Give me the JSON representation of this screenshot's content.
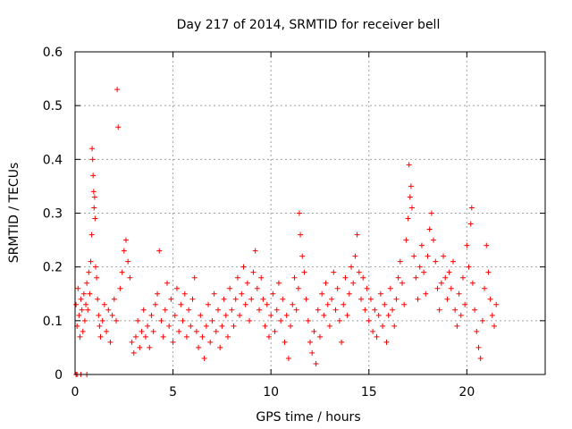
{
  "chart_data": {
    "type": "scatter",
    "title": "Day 217 of 2014, SRMTID for receiver bell",
    "xlabel": "GPS time / hours",
    "ylabel": "SRMTID / TECUs",
    "xlim": [
      0,
      24
    ],
    "ylim": [
      0,
      0.6
    ],
    "xticks": [
      0,
      5,
      10,
      15,
      20
    ],
    "yticks": [
      0,
      0.1,
      0.2,
      0.3,
      0.4,
      0.5,
      0.6
    ],
    "xtick_labels": [
      "0",
      "5",
      "10",
      "15",
      "20"
    ],
    "ytick_labels": [
      "0",
      "0.1",
      "0.2",
      "0.3",
      "0.4",
      "0.5",
      "0.6"
    ],
    "grid": true,
    "marker": "+",
    "series_color": "#ff0000",
    "series": [
      {
        "name": "SRMTID",
        "points": [
          [
            0.05,
            0.0
          ],
          [
            0.1,
            0.0
          ],
          [
            0.3,
            0.0
          ],
          [
            0.6,
            0.0
          ],
          [
            0.05,
            0.13
          ],
          [
            0.1,
            0.09
          ],
          [
            0.15,
            0.16
          ],
          [
            0.2,
            0.11
          ],
          [
            0.25,
            0.07
          ],
          [
            0.3,
            0.14
          ],
          [
            0.35,
            0.12
          ],
          [
            0.4,
            0.08
          ],
          [
            0.45,
            0.15
          ],
          [
            0.5,
            0.1
          ],
          [
            0.55,
            0.13
          ],
          [
            0.6,
            0.17
          ],
          [
            0.65,
            0.12
          ],
          [
            0.7,
            0.19
          ],
          [
            0.75,
            0.15
          ],
          [
            0.8,
            0.21
          ],
          [
            0.85,
            0.26
          ],
          [
            0.87,
            0.42
          ],
          [
            0.9,
            0.4
          ],
          [
            0.92,
            0.37
          ],
          [
            0.95,
            0.34
          ],
          [
            0.97,
            0.31
          ],
          [
            1.0,
            0.33
          ],
          [
            1.02,
            0.29
          ],
          [
            1.05,
            0.2
          ],
          [
            1.1,
            0.18
          ],
          [
            1.15,
            0.14
          ],
          [
            1.2,
            0.11
          ],
          [
            1.25,
            0.09
          ],
          [
            1.3,
            0.07
          ],
          [
            1.4,
            0.1
          ],
          [
            1.5,
            0.13
          ],
          [
            1.6,
            0.08
          ],
          [
            1.7,
            0.12
          ],
          [
            1.8,
            0.06
          ],
          [
            1.9,
            0.11
          ],
          [
            2.0,
            0.14
          ],
          [
            2.1,
            0.1
          ],
          [
            2.15,
            0.53
          ],
          [
            2.2,
            0.46
          ],
          [
            2.3,
            0.16
          ],
          [
            2.4,
            0.19
          ],
          [
            2.5,
            0.23
          ],
          [
            2.6,
            0.25
          ],
          [
            2.7,
            0.21
          ],
          [
            2.8,
            0.18
          ],
          [
            2.9,
            0.06
          ],
          [
            3.0,
            0.04
          ],
          [
            3.1,
            0.07
          ],
          [
            3.2,
            0.1
          ],
          [
            3.3,
            0.05
          ],
          [
            3.4,
            0.08
          ],
          [
            3.5,
            0.12
          ],
          [
            3.6,
            0.07
          ],
          [
            3.7,
            0.09
          ],
          [
            3.8,
            0.05
          ],
          [
            3.9,
            0.11
          ],
          [
            4.0,
            0.08
          ],
          [
            4.1,
            0.13
          ],
          [
            4.2,
            0.15
          ],
          [
            4.3,
            0.23
          ],
          [
            4.4,
            0.1
          ],
          [
            4.5,
            0.07
          ],
          [
            4.6,
            0.12
          ],
          [
            4.7,
            0.17
          ],
          [
            4.8,
            0.09
          ],
          [
            4.9,
            0.14
          ],
          [
            5.0,
            0.06
          ],
          [
            5.1,
            0.11
          ],
          [
            5.2,
            0.16
          ],
          [
            5.3,
            0.08
          ],
          [
            5.4,
            0.13
          ],
          [
            5.5,
            0.1
          ],
          [
            5.6,
            0.15
          ],
          [
            5.7,
            0.07
          ],
          [
            5.8,
            0.12
          ],
          [
            5.9,
            0.09
          ],
          [
            6.0,
            0.14
          ],
          [
            6.1,
            0.18
          ],
          [
            6.2,
            0.08
          ],
          [
            6.3,
            0.05
          ],
          [
            6.4,
            0.11
          ],
          [
            6.5,
            0.07
          ],
          [
            6.6,
            0.03
          ],
          [
            6.7,
            0.09
          ],
          [
            6.8,
            0.13
          ],
          [
            6.9,
            0.06
          ],
          [
            7.0,
            0.1
          ],
          [
            7.1,
            0.15
          ],
          [
            7.2,
            0.08
          ],
          [
            7.3,
            0.12
          ],
          [
            7.4,
            0.05
          ],
          [
            7.5,
            0.09
          ],
          [
            7.6,
            0.14
          ],
          [
            7.7,
            0.11
          ],
          [
            7.8,
            0.07
          ],
          [
            7.9,
            0.16
          ],
          [
            8.0,
            0.12
          ],
          [
            8.1,
            0.09
          ],
          [
            8.2,
            0.14
          ],
          [
            8.3,
            0.18
          ],
          [
            8.4,
            0.11
          ],
          [
            8.5,
            0.15
          ],
          [
            8.6,
            0.2
          ],
          [
            8.7,
            0.13
          ],
          [
            8.8,
            0.17
          ],
          [
            8.9,
            0.1
          ],
          [
            9.0,
            0.14
          ],
          [
            9.1,
            0.19
          ],
          [
            9.2,
            0.23
          ],
          [
            9.3,
            0.16
          ],
          [
            9.4,
            0.12
          ],
          [
            9.5,
            0.18
          ],
          [
            9.6,
            0.14
          ],
          [
            9.7,
            0.09
          ],
          [
            9.8,
            0.13
          ],
          [
            9.9,
            0.07
          ],
          [
            10.0,
            0.11
          ],
          [
            10.1,
            0.15
          ],
          [
            10.2,
            0.08
          ],
          [
            10.3,
            0.12
          ],
          [
            10.4,
            0.17
          ],
          [
            10.5,
            0.1
          ],
          [
            10.6,
            0.14
          ],
          [
            10.7,
            0.06
          ],
          [
            10.8,
            0.11
          ],
          [
            10.9,
            0.03
          ],
          [
            11.0,
            0.09
          ],
          [
            11.1,
            0.13
          ],
          [
            11.2,
            0.18
          ],
          [
            11.3,
            0.12
          ],
          [
            11.4,
            0.16
          ],
          [
            11.45,
            0.3
          ],
          [
            11.5,
            0.26
          ],
          [
            11.6,
            0.22
          ],
          [
            11.7,
            0.19
          ],
          [
            11.8,
            0.14
          ],
          [
            11.9,
            0.1
          ],
          [
            12.0,
            0.06
          ],
          [
            12.1,
            0.04
          ],
          [
            12.2,
            0.08
          ],
          [
            12.3,
            0.02
          ],
          [
            12.4,
            0.12
          ],
          [
            12.5,
            0.07
          ],
          [
            12.6,
            0.15
          ],
          [
            12.7,
            0.11
          ],
          [
            12.8,
            0.17
          ],
          [
            12.9,
            0.13
          ],
          [
            13.0,
            0.09
          ],
          [
            13.1,
            0.14
          ],
          [
            13.2,
            0.19
          ],
          [
            13.3,
            0.12
          ],
          [
            13.4,
            0.16
          ],
          [
            13.5,
            0.1
          ],
          [
            13.6,
            0.06
          ],
          [
            13.7,
            0.13
          ],
          [
            13.8,
            0.18
          ],
          [
            13.9,
            0.11
          ],
          [
            14.0,
            0.15
          ],
          [
            14.1,
            0.2
          ],
          [
            14.2,
            0.17
          ],
          [
            14.3,
            0.22
          ],
          [
            14.4,
            0.26
          ],
          [
            14.5,
            0.19
          ],
          [
            14.6,
            0.14
          ],
          [
            14.7,
            0.18
          ],
          [
            14.8,
            0.12
          ],
          [
            14.9,
            0.16
          ],
          [
            15.0,
            0.1
          ],
          [
            15.1,
            0.14
          ],
          [
            15.2,
            0.08
          ],
          [
            15.3,
            0.12
          ],
          [
            15.4,
            0.07
          ],
          [
            15.5,
            0.11
          ],
          [
            15.6,
            0.15
          ],
          [
            15.7,
            0.09
          ],
          [
            15.8,
            0.13
          ],
          [
            15.9,
            0.06
          ],
          [
            16.0,
            0.11
          ],
          [
            16.1,
            0.16
          ],
          [
            16.2,
            0.12
          ],
          [
            16.3,
            0.09
          ],
          [
            16.4,
            0.14
          ],
          [
            16.5,
            0.18
          ],
          [
            16.6,
            0.21
          ],
          [
            16.7,
            0.17
          ],
          [
            16.8,
            0.13
          ],
          [
            16.9,
            0.25
          ],
          [
            17.0,
            0.29
          ],
          [
            17.05,
            0.39
          ],
          [
            17.1,
            0.33
          ],
          [
            17.15,
            0.35
          ],
          [
            17.2,
            0.31
          ],
          [
            17.3,
            0.22
          ],
          [
            17.4,
            0.18
          ],
          [
            17.5,
            0.14
          ],
          [
            17.6,
            0.2
          ],
          [
            17.7,
            0.24
          ],
          [
            17.8,
            0.19
          ],
          [
            17.9,
            0.15
          ],
          [
            18.0,
            0.22
          ],
          [
            18.1,
            0.27
          ],
          [
            18.2,
            0.3
          ],
          [
            18.3,
            0.25
          ],
          [
            18.4,
            0.21
          ],
          [
            18.5,
            0.16
          ],
          [
            18.6,
            0.12
          ],
          [
            18.7,
            0.17
          ],
          [
            18.8,
            0.22
          ],
          [
            18.9,
            0.18
          ],
          [
            19.0,
            0.14
          ],
          [
            19.1,
            0.19
          ],
          [
            19.2,
            0.16
          ],
          [
            19.3,
            0.21
          ],
          [
            19.4,
            0.12
          ],
          [
            19.5,
            0.09
          ],
          [
            19.6,
            0.15
          ],
          [
            19.7,
            0.11
          ],
          [
            19.8,
            0.18
          ],
          [
            19.9,
            0.13
          ],
          [
            20.0,
            0.24
          ],
          [
            20.1,
            0.2
          ],
          [
            20.2,
            0.28
          ],
          [
            20.25,
            0.31
          ],
          [
            20.3,
            0.17
          ],
          [
            20.4,
            0.12
          ],
          [
            20.5,
            0.08
          ],
          [
            20.6,
            0.05
          ],
          [
            20.7,
            0.03
          ],
          [
            20.8,
            0.1
          ],
          [
            20.9,
            0.16
          ],
          [
            21.0,
            0.24
          ],
          [
            21.1,
            0.19
          ],
          [
            21.2,
            0.14
          ],
          [
            21.3,
            0.11
          ],
          [
            21.4,
            0.09
          ],
          [
            21.5,
            0.13
          ]
        ]
      }
    ]
  }
}
